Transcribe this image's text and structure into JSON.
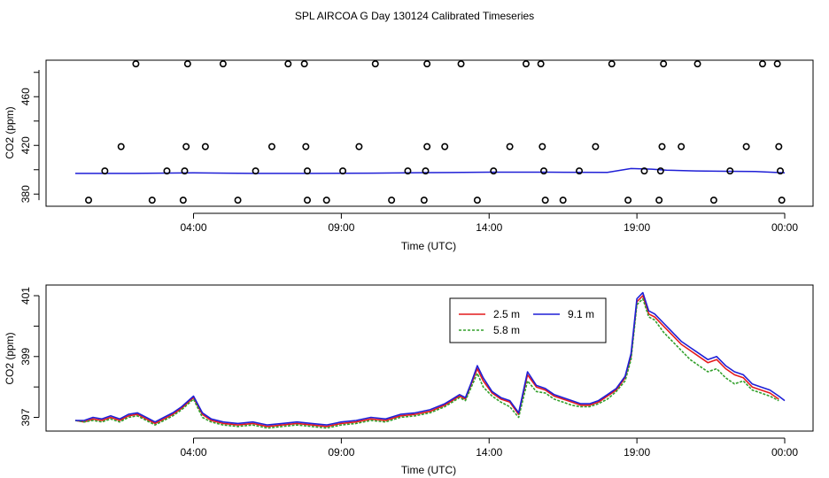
{
  "title": "SPL AIRCOA G  Day 130124  Calibrated Timeseries",
  "chart_data": [
    {
      "type": "scatter",
      "xlabel": "Time (UTC)",
      "ylabel": "CO2 (ppm)",
      "x_ticks": [
        4,
        9,
        14,
        19,
        24
      ],
      "x_tick_labels": [
        "04:00",
        "09:00",
        "14:00",
        "19:00",
        "00:00"
      ],
      "y_ticks": [
        380,
        420,
        460
      ],
      "xlim": [
        0,
        24
      ],
      "ylim": [
        370,
        490
      ],
      "points": [
        {
          "x": 0.45,
          "y": 375
        },
        {
          "x": 1.0,
          "y": 399
        },
        {
          "x": 1.55,
          "y": 419
        },
        {
          "x": 2.05,
          "y": 487
        },
        {
          "x": 2.6,
          "y": 375
        },
        {
          "x": 3.1,
          "y": 399
        },
        {
          "x": 3.65,
          "y": 375
        },
        {
          "x": 3.7,
          "y": 399
        },
        {
          "x": 3.75,
          "y": 419
        },
        {
          "x": 3.8,
          "y": 487
        },
        {
          "x": 4.4,
          "y": 419
        },
        {
          "x": 5.0,
          "y": 487
        },
        {
          "x": 5.5,
          "y": 375
        },
        {
          "x": 6.1,
          "y": 399
        },
        {
          "x": 6.65,
          "y": 419
        },
        {
          "x": 7.2,
          "y": 487
        },
        {
          "x": 7.75,
          "y": 487
        },
        {
          "x": 7.8,
          "y": 419
        },
        {
          "x": 7.85,
          "y": 399
        },
        {
          "x": 7.85,
          "y": 375
        },
        {
          "x": 8.5,
          "y": 375
        },
        {
          "x": 9.05,
          "y": 399
        },
        {
          "x": 9.6,
          "y": 419
        },
        {
          "x": 10.15,
          "y": 487
        },
        {
          "x": 10.7,
          "y": 375
        },
        {
          "x": 11.25,
          "y": 399
        },
        {
          "x": 11.8,
          "y": 375
        },
        {
          "x": 11.85,
          "y": 399
        },
        {
          "x": 11.9,
          "y": 419
        },
        {
          "x": 11.9,
          "y": 487
        },
        {
          "x": 12.5,
          "y": 419
        },
        {
          "x": 13.05,
          "y": 487
        },
        {
          "x": 13.6,
          "y": 375
        },
        {
          "x": 14.15,
          "y": 399
        },
        {
          "x": 14.7,
          "y": 419
        },
        {
          "x": 15.25,
          "y": 487
        },
        {
          "x": 15.75,
          "y": 487
        },
        {
          "x": 15.8,
          "y": 419
        },
        {
          "x": 15.85,
          "y": 399
        },
        {
          "x": 15.9,
          "y": 375
        },
        {
          "x": 16.5,
          "y": 375
        },
        {
          "x": 17.05,
          "y": 399
        },
        {
          "x": 17.6,
          "y": 419
        },
        {
          "x": 18.15,
          "y": 487
        },
        {
          "x": 18.7,
          "y": 375
        },
        {
          "x": 19.25,
          "y": 399
        },
        {
          "x": 19.75,
          "y": 375
        },
        {
          "x": 19.8,
          "y": 399
        },
        {
          "x": 19.85,
          "y": 419
        },
        {
          "x": 19.9,
          "y": 487
        },
        {
          "x": 20.5,
          "y": 419
        },
        {
          "x": 21.05,
          "y": 487
        },
        {
          "x": 21.6,
          "y": 375
        },
        {
          "x": 22.15,
          "y": 399
        },
        {
          "x": 22.7,
          "y": 419
        },
        {
          "x": 23.25,
          "y": 487
        },
        {
          "x": 23.75,
          "y": 487
        },
        {
          "x": 23.8,
          "y": 419
        },
        {
          "x": 23.85,
          "y": 399
        },
        {
          "x": 23.9,
          "y": 375
        }
      ],
      "line": {
        "name": "9.1 m",
        "x": [
          0,
          2,
          4,
          6,
          8,
          10,
          12,
          14,
          16,
          18,
          18.8,
          19.5,
          20,
          21,
          22,
          23,
          24
        ],
        "y": [
          397,
          397,
          397.5,
          397,
          397,
          397.2,
          397.6,
          398,
          398,
          397.8,
          401,
          400.5,
          399.6,
          399,
          398.7,
          398.5,
          397.5
        ]
      }
    },
    {
      "type": "line",
      "xlabel": "Time (UTC)",
      "ylabel": "CO2 (ppm)",
      "x_ticks": [
        4,
        9,
        14,
        19,
        24
      ],
      "x_tick_labels": [
        "04:00",
        "09:00",
        "14:00",
        "19:00",
        "00:00"
      ],
      "y_ticks": [
        397,
        399,
        401
      ],
      "xlim": [
        0,
        24
      ],
      "ylim": [
        396.55,
        401.35
      ],
      "legend": {
        "position": "top-center",
        "entries": [
          "2.5 m",
          "9.1 m",
          "5.8 m"
        ]
      },
      "series": [
        {
          "name": "2.5 m",
          "color": "#e41a1c",
          "x": [
            0.0,
            0.3,
            0.6,
            0.9,
            1.2,
            1.5,
            1.8,
            2.1,
            2.4,
            2.7,
            3.0,
            3.3,
            3.6,
            4.0,
            4.3,
            4.6,
            5.0,
            5.5,
            6.0,
            6.5,
            7.0,
            7.5,
            8.0,
            8.5,
            9.0,
            9.5,
            10.0,
            10.5,
            11.0,
            11.5,
            12.0,
            12.5,
            13.0,
            13.2,
            13.4,
            13.6,
            13.8,
            14.1,
            14.4,
            14.7,
            15.0,
            15.3,
            15.6,
            15.9,
            16.2,
            16.5,
            16.8,
            17.1,
            17.4,
            17.7,
            18.0,
            18.3,
            18.6,
            18.8,
            19.0,
            19.2,
            19.4,
            19.6,
            19.9,
            20.2,
            20.5,
            20.8,
            21.1,
            21.4,
            21.7,
            22.0,
            22.3,
            22.6,
            22.9,
            23.2,
            23.5,
            23.8
          ],
          "y": [
            396.9,
            396.85,
            396.95,
            396.9,
            397.0,
            396.9,
            397.05,
            397.1,
            396.95,
            396.8,
            396.95,
            397.1,
            397.3,
            397.65,
            397.1,
            396.9,
            396.8,
            396.75,
            396.8,
            396.7,
            396.75,
            396.8,
            396.75,
            396.7,
            396.8,
            396.85,
            396.95,
            396.9,
            397.05,
            397.1,
            397.2,
            397.4,
            397.7,
            397.6,
            398.1,
            398.6,
            398.2,
            397.8,
            397.6,
            397.5,
            397.1,
            398.4,
            398.0,
            397.9,
            397.7,
            397.6,
            397.5,
            397.4,
            397.4,
            397.5,
            397.7,
            397.9,
            398.3,
            399.0,
            400.8,
            401.0,
            400.4,
            400.3,
            400.0,
            399.7,
            399.4,
            399.2,
            399.0,
            398.8,
            398.9,
            398.6,
            398.4,
            398.3,
            398.0,
            397.9,
            397.8,
            397.6
          ]
        },
        {
          "name": "5.8 m",
          "color": "#33a02c",
          "dashed": true,
          "x": [
            0.0,
            0.3,
            0.6,
            0.9,
            1.2,
            1.5,
            1.8,
            2.1,
            2.4,
            2.7,
            3.0,
            3.3,
            3.6,
            4.0,
            4.3,
            4.6,
            5.0,
            5.5,
            6.0,
            6.5,
            7.0,
            7.5,
            8.0,
            8.5,
            9.0,
            9.5,
            10.0,
            10.5,
            11.0,
            11.5,
            12.0,
            12.5,
            13.0,
            13.2,
            13.4,
            13.6,
            13.8,
            14.1,
            14.4,
            14.7,
            15.0,
            15.3,
            15.6,
            15.9,
            16.2,
            16.5,
            16.8,
            17.1,
            17.4,
            17.7,
            18.0,
            18.3,
            18.6,
            18.8,
            19.0,
            19.2,
            19.4,
            19.6,
            19.9,
            20.2,
            20.5,
            20.8,
            21.1,
            21.4,
            21.7,
            22.0,
            22.3,
            22.6,
            22.9,
            23.2,
            23.5,
            23.8
          ],
          "y": [
            396.9,
            396.85,
            396.9,
            396.85,
            396.95,
            396.85,
            397.0,
            397.05,
            396.9,
            396.75,
            396.9,
            397.05,
            397.25,
            397.6,
            397.0,
            396.85,
            396.75,
            396.7,
            396.75,
            396.65,
            396.7,
            396.75,
            396.7,
            396.65,
            396.75,
            396.8,
            396.9,
            396.85,
            397.0,
            397.05,
            397.15,
            397.35,
            397.65,
            397.55,
            398.0,
            398.45,
            398.0,
            397.7,
            397.5,
            397.35,
            397.0,
            398.2,
            397.85,
            397.8,
            397.6,
            397.5,
            397.4,
            397.35,
            397.35,
            397.45,
            397.6,
            397.85,
            398.2,
            398.9,
            400.7,
            400.9,
            400.3,
            400.2,
            399.8,
            399.5,
            399.2,
            398.9,
            398.7,
            398.5,
            398.6,
            398.3,
            398.1,
            398.2,
            397.9,
            397.8,
            397.7,
            397.55
          ]
        },
        {
          "name": "9.1 m",
          "color": "#1f1fd6",
          "x": [
            0.0,
            0.3,
            0.6,
            0.9,
            1.2,
            1.5,
            1.8,
            2.1,
            2.4,
            2.7,
            3.0,
            3.3,
            3.6,
            4.0,
            4.3,
            4.6,
            5.0,
            5.5,
            6.0,
            6.5,
            7.0,
            7.5,
            8.0,
            8.5,
            9.0,
            9.5,
            10.0,
            10.5,
            11.0,
            11.5,
            12.0,
            12.5,
            13.0,
            13.2,
            13.4,
            13.6,
            13.8,
            14.1,
            14.4,
            14.7,
            15.0,
            15.3,
            15.6,
            15.9,
            16.2,
            16.5,
            16.8,
            17.1,
            17.4,
            17.7,
            18.0,
            18.3,
            18.6,
            18.8,
            19.0,
            19.2,
            19.4,
            19.6,
            19.9,
            20.2,
            20.5,
            20.8,
            21.1,
            21.4,
            21.7,
            22.0,
            22.3,
            22.6,
            22.9,
            23.2,
            23.5,
            23.8,
            24.0
          ],
          "y": [
            396.9,
            396.9,
            397.0,
            396.95,
            397.05,
            396.95,
            397.1,
            397.15,
            397.0,
            396.85,
            397.0,
            397.15,
            397.35,
            397.7,
            397.15,
            396.95,
            396.85,
            396.8,
            396.85,
            396.75,
            396.8,
            396.85,
            396.8,
            396.75,
            396.85,
            396.9,
            397.0,
            396.95,
            397.1,
            397.15,
            397.25,
            397.45,
            397.75,
            397.65,
            398.15,
            398.7,
            398.3,
            397.85,
            397.65,
            397.55,
            397.15,
            398.5,
            398.05,
            397.95,
            397.75,
            397.65,
            397.55,
            397.45,
            397.45,
            397.55,
            397.75,
            397.95,
            398.35,
            399.1,
            400.9,
            401.1,
            400.5,
            400.4,
            400.1,
            399.8,
            399.5,
            399.3,
            399.1,
            398.9,
            399.0,
            398.7,
            398.5,
            398.4,
            398.1,
            398.0,
            397.9,
            397.7,
            397.55
          ]
        }
      ]
    }
  ]
}
